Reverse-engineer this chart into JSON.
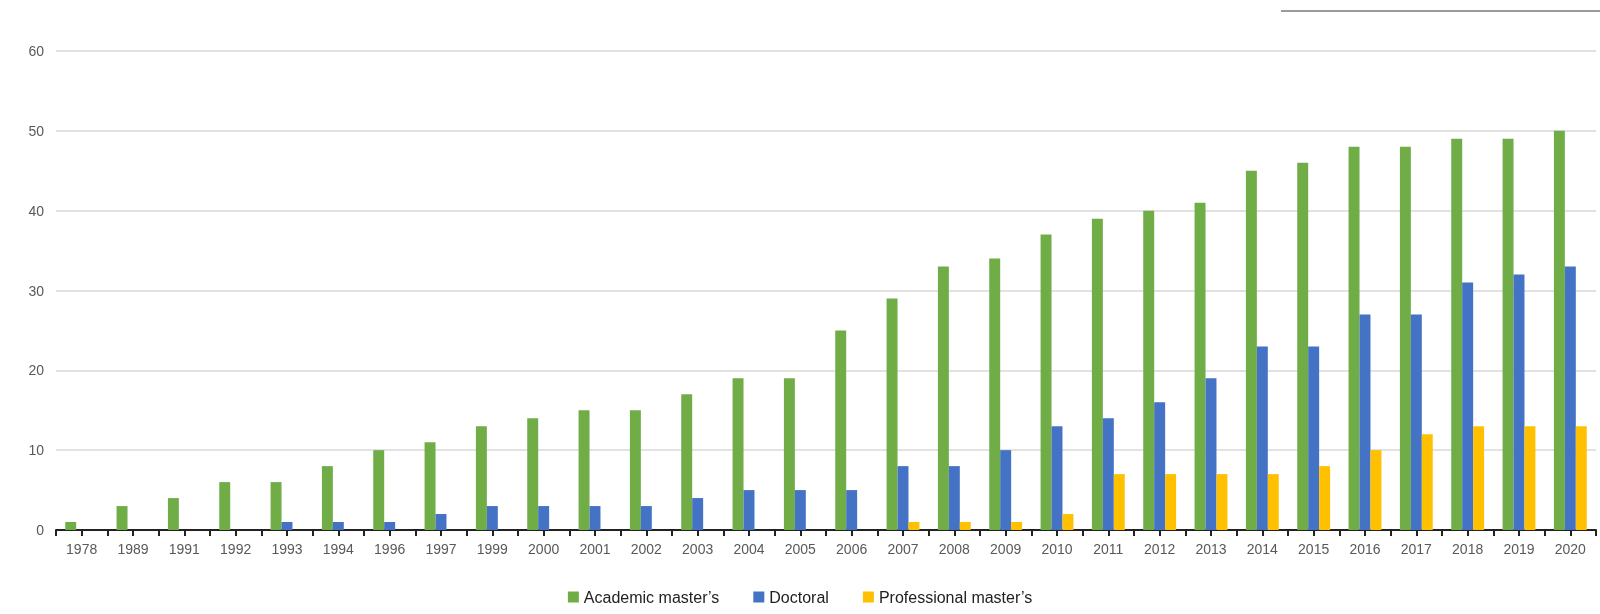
{
  "chart_data": {
    "type": "bar",
    "categories": [
      "1978",
      "1989",
      "1991",
      "1992",
      "1993",
      "1994",
      "1996",
      "1997",
      "1999",
      "2000",
      "2001",
      "2002",
      "2003",
      "2004",
      "2005",
      "2006",
      "2007",
      "2008",
      "2009",
      "2010",
      "2011",
      "2012",
      "2013",
      "2014",
      "2015",
      "2016",
      "2017",
      "2018",
      "2019",
      "2020"
    ],
    "series": [
      {
        "name": "Academic master’s",
        "color": "#70ad47",
        "values": [
          1,
          3,
          4,
          6,
          6,
          8,
          10,
          11,
          13,
          14,
          15,
          15,
          17,
          19,
          19,
          25,
          29,
          33,
          34,
          37,
          39,
          40,
          41,
          45,
          46,
          48,
          48,
          49,
          49,
          50
        ]
      },
      {
        "name": "Doctoral",
        "color": "#4472c4",
        "values": [
          0,
          0,
          0,
          0,
          1,
          1,
          1,
          2,
          3,
          3,
          3,
          3,
          4,
          5,
          5,
          5,
          8,
          8,
          10,
          13,
          14,
          16,
          19,
          23,
          23,
          27,
          27,
          31,
          32,
          33
        ]
      },
      {
        "name": "Professional master’s",
        "color": "#ffc000",
        "values": [
          0,
          0,
          0,
          0,
          0,
          0,
          0,
          0,
          0,
          0,
          0,
          0,
          0,
          0,
          0,
          0,
          1,
          1,
          1,
          2,
          7,
          7,
          7,
          7,
          8,
          10,
          12,
          13,
          13,
          13
        ]
      }
    ],
    "ylim": [
      0,
      60
    ],
    "yticks": [
      0,
      10,
      20,
      30,
      40,
      50,
      60
    ],
    "grid": "y",
    "legend": "bottom"
  }
}
